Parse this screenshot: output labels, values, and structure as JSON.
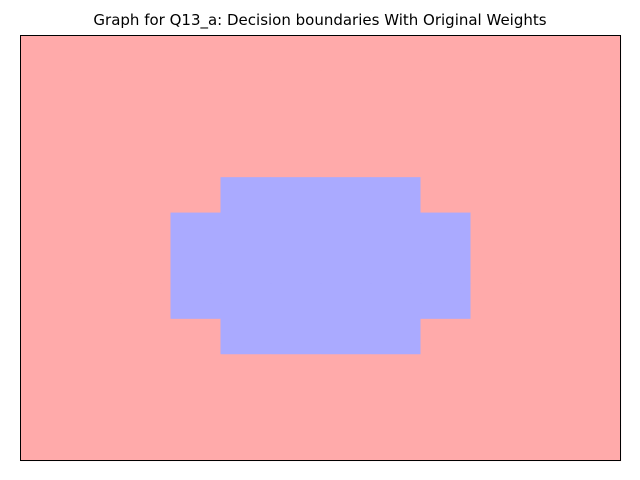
{
  "chart_data": {
    "type": "heatmap",
    "title": "Graph for Q13_a: Decision boundaries With Original Weights",
    "xlabel": "",
    "ylabel": "",
    "xticks": [],
    "yticks": [],
    "grid": false,
    "legend": "none",
    "colors": {
      "class_0": "#ffaaaa",
      "class_1": "#aaaaff",
      "axes_edge": "#000000",
      "figure_bg": "#ffffff"
    },
    "grid_cols": 12,
    "grid_rows": 12,
    "classes": [
      [
        0,
        0,
        0,
        0,
        0,
        0,
        0,
        0,
        0,
        0,
        0,
        0
      ],
      [
        0,
        0,
        0,
        0,
        0,
        0,
        0,
        0,
        0,
        0,
        0,
        0
      ],
      [
        0,
        0,
        0,
        0,
        0,
        0,
        0,
        0,
        0,
        0,
        0,
        0
      ],
      [
        0,
        0,
        0,
        0,
        0,
        0,
        0,
        0,
        0,
        0,
        0,
        0
      ],
      [
        0,
        0,
        0,
        0,
        1,
        1,
        1,
        1,
        0,
        0,
        0,
        0
      ],
      [
        0,
        0,
        0,
        1,
        1,
        1,
        1,
        1,
        1,
        0,
        0,
        0
      ],
      [
        0,
        0,
        0,
        1,
        1,
        1,
        1,
        1,
        1,
        0,
        0,
        0
      ],
      [
        0,
        0,
        0,
        1,
        1,
        1,
        1,
        1,
        1,
        0,
        0,
        0
      ],
      [
        0,
        0,
        0,
        0,
        1,
        1,
        1,
        1,
        0,
        0,
        0,
        0
      ],
      [
        0,
        0,
        0,
        0,
        0,
        0,
        0,
        0,
        0,
        0,
        0,
        0
      ],
      [
        0,
        0,
        0,
        0,
        0,
        0,
        0,
        0,
        0,
        0,
        0,
        0
      ],
      [
        0,
        0,
        0,
        0,
        0,
        0,
        0,
        0,
        0,
        0,
        0,
        0
      ]
    ]
  }
}
